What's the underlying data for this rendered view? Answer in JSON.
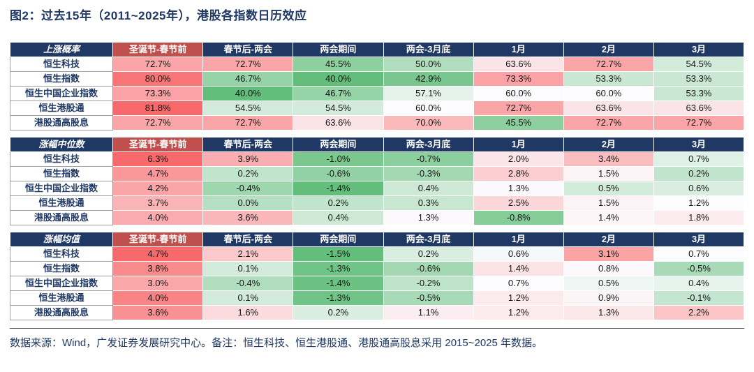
{
  "title": "图2：过去15年（2011~2025年），港股各指数日历效应",
  "footer": "数据来源：Wind，广发证券发展研究中心。备注：恒生科技、恒生港股通、港股通高股息采用 2015~2025 年数据。",
  "colors": {
    "title_text": "#1F3864",
    "header_bg": "#1F3864",
    "header_highlight_bg": "#C0504D",
    "header_text": "#FFFFFF",
    "row_label_text": "#1F3864",
    "scale_low": "#63BE7B",
    "scale_mid": "#FCFCFF",
    "scale_high": "#F8696B",
    "divider": "#595959"
  },
  "chart_data": [
    {
      "type": "heatmap",
      "title": "上涨概率",
      "unit": "%",
      "legend_position": "none",
      "columns": [
        "圣诞节-春节前",
        "春节后-两会",
        "两会期间",
        "两会-3月底",
        "1月",
        "2月",
        "3月"
      ],
      "rows": [
        "恒生科技",
        "恒生指数",
        "恒生中国企业指数",
        "恒生港股通",
        "港股通高股息"
      ],
      "values": [
        [
          72.7,
          72.7,
          45.5,
          50.0,
          63.6,
          72.7,
          54.5
        ],
        [
          80.0,
          46.7,
          40.0,
          42.9,
          73.3,
          53.3,
          53.3
        ],
        [
          73.3,
          40.0,
          46.7,
          57.1,
          60.0,
          60.0,
          53.3
        ],
        [
          81.8,
          54.5,
          54.5,
          60.0,
          72.7,
          63.6,
          63.6
        ],
        [
          72.7,
          72.7,
          63.6,
          70.0,
          45.5,
          72.7,
          72.7
        ]
      ]
    },
    {
      "type": "heatmap",
      "title": "涨幅中位数",
      "unit": "%",
      "legend_position": "none",
      "columns": [
        "圣诞节-春节前",
        "春节后-两会",
        "两会期间",
        "两会-3月底",
        "1月",
        "2月",
        "3月"
      ],
      "rows": [
        "恒生科技",
        "恒生指数",
        "恒生中国企业指数",
        "恒生港股通",
        "港股通高股息"
      ],
      "values": [
        [
          6.3,
          3.9,
          -1.0,
          -0.7,
          2.0,
          3.4,
          0.7
        ],
        [
          4.7,
          0.2,
          -0.6,
          -0.3,
          2.8,
          1.5,
          0.2
        ],
        [
          4.2,
          -0.4,
          -1.4,
          0.4,
          1.3,
          0.5,
          0.6
        ],
        [
          3.7,
          0.0,
          0.2,
          0.3,
          2.5,
          1.5,
          1.2
        ],
        [
          4.0,
          3.6,
          0.4,
          1.3,
          -0.8,
          1.4,
          1.8
        ]
      ]
    },
    {
      "type": "heatmap",
      "title": "涨幅均值",
      "unit": "%",
      "legend_position": "none",
      "columns": [
        "圣诞节-春节前",
        "春节后-两会",
        "两会期间",
        "两会-3月底",
        "1月",
        "2月",
        "3月"
      ],
      "rows": [
        "恒生科技",
        "恒生指数",
        "恒生中国企业指数",
        "恒生港股通",
        "港股通高股息"
      ],
      "values": [
        [
          4.7,
          2.1,
          -1.5,
          0.2,
          0.6,
          3.1,
          0.7
        ],
        [
          3.8,
          0.1,
          -1.3,
          -0.6,
          1.4,
          0.8,
          -0.5
        ],
        [
          3.0,
          -0.4,
          -1.4,
          -0.2,
          0.7,
          0.5,
          0.4
        ],
        [
          4.0,
          0.1,
          -1.3,
          -0.5,
          1.2,
          0.9,
          -0.1
        ],
        [
          3.6,
          1.6,
          0.2,
          1.1,
          1.2,
          1.3,
          2.2
        ]
      ]
    }
  ]
}
